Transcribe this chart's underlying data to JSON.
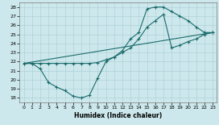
{
  "xlabel": "Humidex (Indice chaleur)",
  "xlim": [
    -0.5,
    23.5
  ],
  "ylim": [
    17.5,
    28.5
  ],
  "xticks": [
    0,
    1,
    2,
    3,
    4,
    5,
    6,
    7,
    8,
    9,
    10,
    11,
    12,
    13,
    14,
    15,
    16,
    17,
    18,
    19,
    20,
    21,
    22,
    23
  ],
  "yticks": [
    18,
    19,
    20,
    21,
    22,
    23,
    24,
    25,
    26,
    27,
    28
  ],
  "bg_color": "#cde8ec",
  "line_color": "#1a6b6b",
  "line1_x": [
    0,
    1,
    2,
    3,
    4,
    5,
    6,
    7,
    8,
    9,
    10,
    11,
    12,
    13,
    14,
    15,
    16,
    17,
    18,
    19,
    20,
    21,
    22,
    23
  ],
  "line1_y": [
    21.8,
    21.8,
    21.2,
    19.7,
    19.2,
    18.8,
    18.2,
    18.0,
    18.3,
    20.2,
    22.0,
    22.5,
    23.2,
    24.5,
    25.2,
    27.8,
    28.0,
    28.0,
    27.5,
    27.0,
    26.5,
    25.8,
    25.2,
    25.2
  ],
  "line2_x": [
    0,
    1,
    2,
    3,
    4,
    5,
    6,
    7,
    8,
    9,
    10,
    11,
    12,
    13,
    14,
    15,
    16,
    17,
    18,
    19,
    20,
    21,
    22,
    23
  ],
  "line2_y": [
    21.8,
    21.8,
    21.8,
    21.8,
    21.8,
    21.8,
    21.8,
    21.8,
    21.8,
    21.9,
    22.2,
    22.5,
    23.0,
    23.5,
    24.5,
    25.8,
    26.5,
    27.2,
    23.5,
    23.8,
    24.2,
    24.5,
    25.0,
    25.2
  ],
  "line3_x": [
    0,
    23
  ],
  "line3_y": [
    21.8,
    25.2
  ]
}
